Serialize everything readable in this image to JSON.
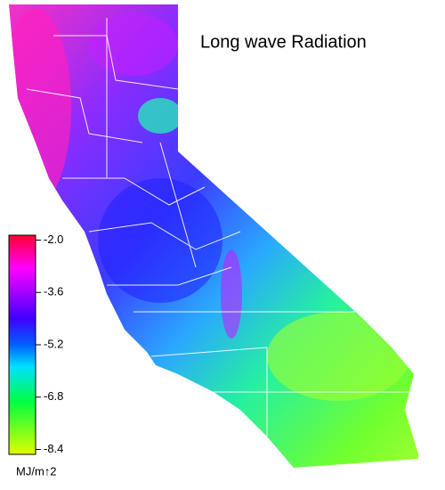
{
  "title": "Long wave Radiation",
  "colorbar": {
    "unit": "MJ/m↑2",
    "clim": [
      -1.85,
      -8.55
    ],
    "ticks": [
      {
        "value": -2.0,
        "label": "-2.0"
      },
      -3.6,
      -5.2,
      -6.8,
      -8.4
    ]
  }
}
